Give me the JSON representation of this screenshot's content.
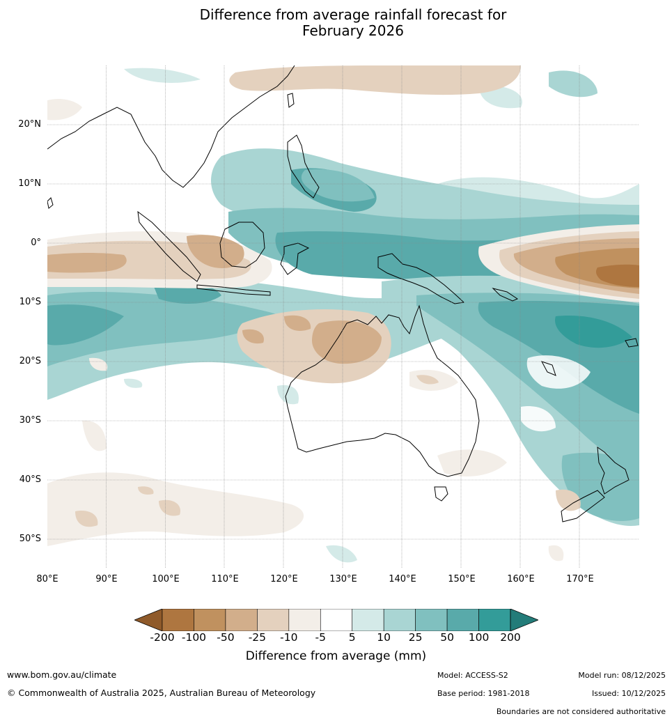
{
  "title_line1": "Difference from average rainfall forecast for",
  "title_line2": "February 2026",
  "lat_labels": [
    "20°N",
    "10°N",
    "0°",
    "10°S",
    "20°S",
    "30°S",
    "40°S",
    "50°S"
  ],
  "lon_labels": [
    "80°E",
    "90°E",
    "100°E",
    "110°E",
    "120°E",
    "130°E",
    "140°E",
    "150°E",
    "160°E",
    "170°E"
  ],
  "colorbar": {
    "ticks": [
      "-200",
      "-100",
      "-50",
      "-25",
      "-10",
      "-5",
      "5",
      "10",
      "25",
      "50",
      "100",
      "200"
    ],
    "colors": [
      "#ae7640",
      "#c0915f",
      "#d2ae8b",
      "#e4d1be",
      "#f3eee8",
      "#ffffff",
      "#d4eae8",
      "#a9d5d3",
      "#80c0bf",
      "#59aaaa",
      "#339c99"
    ],
    "under_color": "#8f5a2a",
    "over_color": "#237c79",
    "label": "Difference from average (mm)"
  },
  "footer": {
    "website": "www.bom.gov.au/climate",
    "copyright": "© Commonwealth of Australia 2025, Australian Bureau of Meteorology",
    "model": "Model: ACCESS-S2",
    "base_period": "Base period: 1981-2018",
    "model_run": "Model run: 08/12/2025",
    "issued": "Issued: 10/12/2025",
    "disclaimer": "Boundaries are not considered authoritative"
  }
}
